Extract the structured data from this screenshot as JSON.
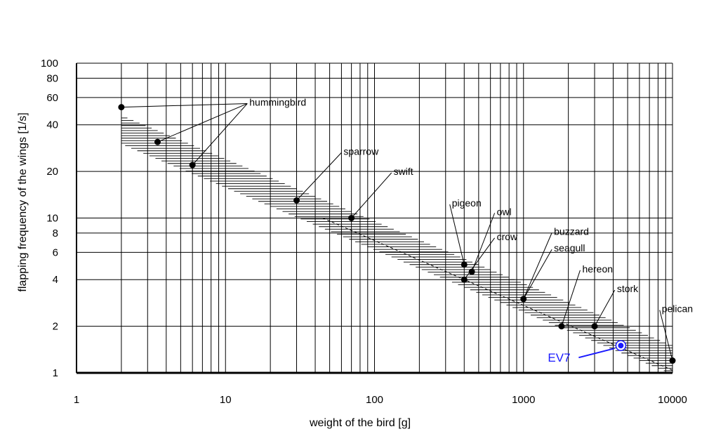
{
  "chart_data": {
    "type": "scatter",
    "title": "",
    "xlabel": "weight of the bird [g]",
    "ylabel": "flapping frequency of the wings [1/s]",
    "xscale": "log",
    "yscale": "log",
    "xlim": [
      1,
      10000
    ],
    "ylim": [
      1,
      100
    ],
    "x_ticks": [
      1,
      10,
      100,
      1000,
      10000
    ],
    "x_tick_labels": [
      "1",
      "10",
      "100",
      "1000",
      "10000"
    ],
    "y_ticks": [
      1,
      2,
      4,
      6,
      8,
      10,
      20,
      40,
      60,
      80,
      100
    ],
    "y_tick_labels": [
      "1",
      "2",
      "4",
      "6",
      "8",
      "10",
      "20",
      "40",
      "60",
      "80",
      "100"
    ],
    "grid": true,
    "points": [
      {
        "x": 2,
        "y": 52
      },
      {
        "x": 3.5,
        "y": 31
      },
      {
        "x": 6,
        "y": 22
      },
      {
        "x": 30,
        "y": 13
      },
      {
        "x": 70,
        "y": 10
      },
      {
        "x": 400,
        "y": 5
      },
      {
        "x": 450,
        "y": 4.5
      },
      {
        "x": 400,
        "y": 4
      },
      {
        "x": 1000,
        "y": 3
      },
      {
        "x": 1800,
        "y": 2
      },
      {
        "x": 3000,
        "y": 2
      },
      {
        "x": 10000,
        "y": 1.2
      }
    ],
    "annotations": [
      {
        "text": "hummingbird",
        "x": 14,
        "y": 56,
        "points": [
          0,
          1,
          2
        ]
      },
      {
        "text": "sparrow",
        "x": 60,
        "y": 27,
        "points": [
          3
        ]
      },
      {
        "text": "swift",
        "x": 130,
        "y": 20,
        "points": [
          4
        ]
      },
      {
        "text": "pigeon",
        "x": 320,
        "y": 12.5,
        "points": [
          5
        ]
      },
      {
        "text": "owl",
        "x": 640,
        "y": 11,
        "points": [
          6
        ]
      },
      {
        "text": "crow",
        "x": 640,
        "y": 7.6,
        "points": [
          7
        ]
      },
      {
        "text": "buzzard",
        "x": 1550,
        "y": 8.2,
        "points": [
          8
        ]
      },
      {
        "text": "seagull",
        "x": 1550,
        "y": 6.4,
        "points": [
          8
        ]
      },
      {
        "text": "hereon",
        "x": 2400,
        "y": 4.7,
        "points": [
          9
        ]
      },
      {
        "text": "stork",
        "x": 4100,
        "y": 3.5,
        "points": [
          10
        ]
      },
      {
        "text": "pelican",
        "x": 8200,
        "y": 2.6,
        "points": [
          11
        ]
      }
    ],
    "highlight": {
      "label": "EV7",
      "x": 4500,
      "y": 1.5,
      "color": "#1a1aff"
    },
    "trend_band": {
      "x_start": 2,
      "x_end": 10000,
      "upper_start": 46,
      "lower_start": 30,
      "upper_end": 1.5,
      "lower_end": 1.0
    },
    "trend_line": {
      "x_start": 45,
      "y_start": 10,
      "x_end": 10000,
      "y_end": 1.04
    },
    "colors": {
      "axis": "#000000",
      "grid": "#000000",
      "points": "#000000",
      "highlight": "#1a1aff"
    }
  }
}
